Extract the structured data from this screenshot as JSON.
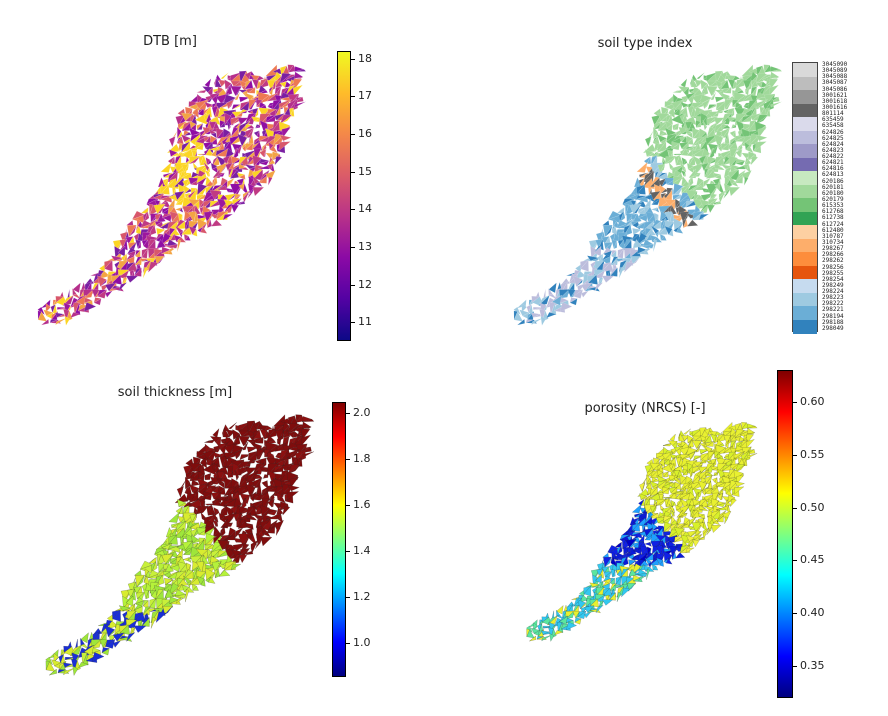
{
  "panels": [
    {
      "title": "DTB [m]",
      "colorbar": {
        "colormap": "plasma",
        "colors": [
          "#0d0887",
          "#5302a3",
          "#8b0aa5",
          "#b83289",
          "#db5c68",
          "#f48849",
          "#febc2a",
          "#f0f921"
        ],
        "range": [
          10.5,
          18.2
        ],
        "ticks": [
          11,
          12,
          13,
          14,
          15,
          16,
          17,
          18
        ]
      },
      "map_palette": [
        "#7a1fa2",
        "#9c179e",
        "#c03a83",
        "#d8576b",
        "#ed7953",
        "#f3a444",
        "#fbd524",
        "#8f0da4",
        "#b52f8c"
      ]
    },
    {
      "title": "soil type index",
      "legend_codes": [
        "3045090",
        "3045089",
        "3045088",
        "3045087",
        "3045086",
        "3001621",
        "3001618",
        "3001616",
        "801114",
        "635459",
        "635458",
        "624826",
        "624825",
        "624824",
        "624823",
        "624822",
        "624821",
        "624816",
        "624813",
        "620186",
        "620181",
        "620180",
        "620179",
        "615353",
        "612768",
        "612738",
        "612724",
        "612480",
        "310787",
        "310734",
        "298267",
        "298266",
        "298262",
        "298256",
        "298255",
        "298254",
        "298249",
        "298224",
        "298223",
        "298222",
        "298221",
        "298194",
        "298188",
        "298049"
      ],
      "legend_colors": [
        "#d9d9d9",
        "#bdbdbd",
        "#969696",
        "#636363",
        "#dadaeb",
        "#bcbddc",
        "#9e9ac8",
        "#756bb1",
        "#c7e9c0",
        "#a1d99b",
        "#74c476",
        "#31a354",
        "#fdd0a2",
        "#fdae6b",
        "#fd8d3c",
        "#e6550d",
        "#c6dbef",
        "#9ecae1",
        "#6baed6",
        "#3182bd"
      ],
      "map_palette": [
        "#6baed6",
        "#9ecae1",
        "#a1d99b",
        "#74c476",
        "#636363",
        "#fdae6b",
        "#bcbddc",
        "#c6dbef",
        "#3182bd",
        "#fd8d3c"
      ]
    },
    {
      "title": "soil thickness [m]",
      "colorbar": {
        "colormap": "jet",
        "colors": [
          "#00007f",
          "#0000ff",
          "#007fff",
          "#00ffff",
          "#7fff7f",
          "#ffff00",
          "#ff7f00",
          "#ff0000",
          "#7f0000"
        ],
        "range": [
          0.85,
          2.05
        ],
        "ticks": [
          "1.0",
          "1.2",
          "1.4",
          "1.6",
          "1.8",
          "2.0"
        ]
      },
      "map_palette": [
        "#b5f23a",
        "#c8f03a",
        "#d8ec30",
        "#9ee63a",
        "#7f0d0d",
        "#8b1010",
        "#e8541c",
        "#1a2fd6",
        "#ffb000"
      ]
    },
    {
      "title": "porosity (NRCS) [-]",
      "colorbar": {
        "colormap": "jet",
        "colors": [
          "#00007f",
          "#0000ff",
          "#007fff",
          "#00ffff",
          "#7fff7f",
          "#ffff00",
          "#ff7f00",
          "#ff0000",
          "#7f0000"
        ],
        "range": [
          0.32,
          0.63
        ],
        "ticks": [
          "0.35",
          "0.40",
          "0.45",
          "0.50",
          "0.55",
          "0.60"
        ]
      },
      "map_palette": [
        "#0a1ad9",
        "#1020e6",
        "#0000c8",
        "#e8f030",
        "#d8f02a",
        "#32c8f0",
        "#1ea0ff",
        "#5ae6a0",
        "#f0f040"
      ]
    }
  ],
  "chart_data": [
    {
      "type": "heatmap",
      "title": "DTB [m]",
      "colorbar_label": "",
      "colorbar_range": [
        10.5,
        18.2
      ],
      "colorbar_ticks": [
        11,
        12,
        13,
        14,
        15,
        16,
        17,
        18
      ],
      "colormap": "plasma"
    },
    {
      "type": "heatmap",
      "title": "soil type index",
      "categorical": true,
      "legend_entries": 44
    },
    {
      "type": "heatmap",
      "title": "soil thickness [m]",
      "colorbar_range": [
        0.85,
        2.05
      ],
      "colorbar_ticks": [
        1.0,
        1.2,
        1.4,
        1.6,
        1.8,
        2.0
      ],
      "colormap": "jet"
    },
    {
      "type": "heatmap",
      "title": "porosity (NRCS) [-]",
      "colorbar_range": [
        0.32,
        0.63
      ],
      "colorbar_ticks": [
        0.35,
        0.4,
        0.45,
        0.5,
        0.55,
        0.6
      ],
      "colormap": "jet"
    }
  ]
}
